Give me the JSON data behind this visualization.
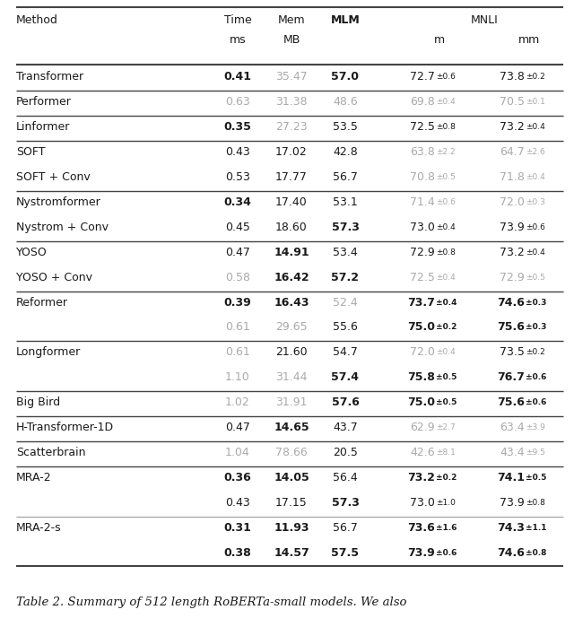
{
  "caption": "Table 2. Summary of 512 length RoBERTa-small models. We also",
  "rows": [
    {
      "method": [
        "Transformer"
      ],
      "subrows": [
        {
          "time": "0.41",
          "tb": true,
          "tg": false,
          "mem": "35.47",
          "mb": false,
          "mg": true,
          "mlm": "57.0",
          "lb": true,
          "lg": false,
          "mm": "72.7",
          "mme": "0.6",
          "mmb": false,
          "mmg": false,
          "mmm": "73.8",
          "mmme": "0.2",
          "mmmb": false,
          "mmmg": false
        }
      ],
      "sep_below": true
    },
    {
      "method": [
        "Performer"
      ],
      "subrows": [
        {
          "time": "0.63",
          "tb": false,
          "tg": true,
          "mem": "31.38",
          "mb": false,
          "mg": true,
          "mlm": "48.6",
          "lb": false,
          "lg": true,
          "mm": "69.8",
          "mme": "0.4",
          "mmb": false,
          "mmg": true,
          "mmm": "70.5",
          "mmme": "0.1",
          "mmmb": false,
          "mmmg": true
        }
      ],
      "sep_below": true
    },
    {
      "method": [
        "Linformer"
      ],
      "subrows": [
        {
          "time": "0.35",
          "tb": true,
          "tg": false,
          "mem": "27.23",
          "mb": false,
          "mg": true,
          "mlm": "53.5",
          "lb": false,
          "lg": false,
          "mm": "72.5",
          "mme": "0.8",
          "mmb": false,
          "mmg": false,
          "mmm": "73.2",
          "mmme": "0.4",
          "mmmb": false,
          "mmmg": false
        }
      ],
      "sep_below": true
    },
    {
      "method": [
        "SOFT",
        "SOFT + Conv"
      ],
      "subrows": [
        {
          "time": "0.43",
          "tb": false,
          "tg": false,
          "mem": "17.02",
          "mb": false,
          "mg": false,
          "mlm": "42.8",
          "lb": false,
          "lg": false,
          "mm": "63.8",
          "mme": "2.2",
          "mmb": false,
          "mmg": true,
          "mmm": "64.7",
          "mmme": "2.6",
          "mmmb": false,
          "mmmg": true
        },
        {
          "time": "0.53",
          "tb": false,
          "tg": false,
          "mem": "17.77",
          "mb": false,
          "mg": false,
          "mlm": "56.7",
          "lb": false,
          "lg": false,
          "mm": "70.8",
          "mme": "0.5",
          "mmb": false,
          "mmg": true,
          "mmm": "71.8",
          "mmme": "0.4",
          "mmmb": false,
          "mmmg": true
        }
      ],
      "sep_below": true
    },
    {
      "method": [
        "Nystromformer",
        "Nystrom + Conv"
      ],
      "subrows": [
        {
          "time": "0.34",
          "tb": true,
          "tg": false,
          "mem": "17.40",
          "mb": false,
          "mg": false,
          "mlm": "53.1",
          "lb": false,
          "lg": false,
          "mm": "71.4",
          "mme": "0.6",
          "mmb": false,
          "mmg": true,
          "mmm": "72.0",
          "mmme": "0.3",
          "mmmb": false,
          "mmmg": true
        },
        {
          "time": "0.45",
          "tb": false,
          "tg": false,
          "mem": "18.60",
          "mb": false,
          "mg": false,
          "mlm": "57.3",
          "lb": true,
          "lg": false,
          "mm": "73.0",
          "mme": "0.4",
          "mmb": false,
          "mmg": false,
          "mmm": "73.9",
          "mmme": "0.6",
          "mmmb": false,
          "mmmg": false
        }
      ],
      "sep_below": true
    },
    {
      "method": [
        "YOSO",
        "YOSO + Conv"
      ],
      "subrows": [
        {
          "time": "0.47",
          "tb": false,
          "tg": false,
          "mem": "14.91",
          "mb": true,
          "mg": false,
          "mlm": "53.4",
          "lb": false,
          "lg": false,
          "mm": "72.9",
          "mme": "0.8",
          "mmb": false,
          "mmg": false,
          "mmm": "73.2",
          "mmme": "0.4",
          "mmmb": false,
          "mmmg": false
        },
        {
          "time": "0.58",
          "tb": false,
          "tg": true,
          "mem": "16.42",
          "mb": true,
          "mg": false,
          "mlm": "57.2",
          "lb": true,
          "lg": false,
          "mm": "72.5",
          "mme": "0.4",
          "mmb": false,
          "mmg": true,
          "mmm": "72.9",
          "mmme": "0.5",
          "mmmb": false,
          "mmmg": true
        }
      ],
      "sep_below": true
    },
    {
      "method": [
        "Reformer",
        ""
      ],
      "subrows": [
        {
          "time": "0.39",
          "tb": true,
          "tg": false,
          "mem": "16.43",
          "mb": true,
          "mg": false,
          "mlm": "52.4",
          "lb": false,
          "lg": true,
          "mm": "73.7",
          "mme": "0.4",
          "mmb": true,
          "mmg": false,
          "mmm": "74.6",
          "mmme": "0.3",
          "mmmb": true,
          "mmmg": false
        },
        {
          "time": "0.61",
          "tb": false,
          "tg": true,
          "mem": "29.65",
          "mb": false,
          "mg": true,
          "mlm": "55.6",
          "lb": false,
          "lg": false,
          "mm": "75.0",
          "mme": "0.2",
          "mmb": true,
          "mmg": false,
          "mmm": "75.6",
          "mmme": "0.3",
          "mmmb": true,
          "mmmg": false
        }
      ],
      "sep_below": true
    },
    {
      "method": [
        "Longformer",
        ""
      ],
      "subrows": [
        {
          "time": "0.61",
          "tb": false,
          "tg": true,
          "mem": "21.60",
          "mb": false,
          "mg": false,
          "mlm": "54.7",
          "lb": false,
          "lg": false,
          "mm": "72.0",
          "mme": "0.4",
          "mmb": false,
          "mmg": true,
          "mmm": "73.5",
          "mmme": "0.2",
          "mmmb": false,
          "mmmg": false
        },
        {
          "time": "1.10",
          "tb": false,
          "tg": true,
          "mem": "31.44",
          "mb": false,
          "mg": true,
          "mlm": "57.4",
          "lb": true,
          "lg": false,
          "mm": "75.8",
          "mme": "0.5",
          "mmb": true,
          "mmg": false,
          "mmm": "76.7",
          "mmme": "0.6",
          "mmmb": true,
          "mmmg": false
        }
      ],
      "sep_below": true
    },
    {
      "method": [
        "Big Bird"
      ],
      "subrows": [
        {
          "time": "1.02",
          "tb": false,
          "tg": true,
          "mem": "31.91",
          "mb": false,
          "mg": true,
          "mlm": "57.6",
          "lb": true,
          "lg": false,
          "mm": "75.0",
          "mme": "0.5",
          "mmb": true,
          "mmg": false,
          "mmm": "75.6",
          "mmme": "0.6",
          "mmmb": true,
          "mmmg": false
        }
      ],
      "sep_below": true
    },
    {
      "method": [
        "H-Transformer-1D"
      ],
      "subrows": [
        {
          "time": "0.47",
          "tb": false,
          "tg": false,
          "mem": "14.65",
          "mb": true,
          "mg": false,
          "mlm": "43.7",
          "lb": false,
          "lg": false,
          "mm": "62.9",
          "mme": "2.7",
          "mmb": false,
          "mmg": true,
          "mmm": "63.4",
          "mmme": "3.9",
          "mmmb": false,
          "mmmg": true
        }
      ],
      "sep_below": true
    },
    {
      "method": [
        "Scatterbrain"
      ],
      "subrows": [
        {
          "time": "1.04",
          "tb": false,
          "tg": true,
          "mem": "78.66",
          "mb": false,
          "mg": true,
          "mlm": "20.5",
          "lb": false,
          "lg": false,
          "mm": "42.6",
          "mme": "8.1",
          "mmb": false,
          "mmg": true,
          "mmm": "43.4",
          "mmme": "9.5",
          "mmmb": false,
          "mmmg": true
        }
      ],
      "sep_below": true
    },
    {
      "method": [
        "MRA-2",
        ""
      ],
      "subrows": [
        {
          "time": "0.36",
          "tb": true,
          "tg": false,
          "mem": "14.05",
          "mb": true,
          "mg": false,
          "mlm": "56.4",
          "lb": false,
          "lg": false,
          "mm": "73.2",
          "mme": "0.2",
          "mmb": true,
          "mmg": false,
          "mmm": "74.1",
          "mmme": "0.5",
          "mmmb": true,
          "mmmg": false
        },
        {
          "time": "0.43",
          "tb": false,
          "tg": false,
          "mem": "17.15",
          "mb": false,
          "mg": false,
          "mlm": "57.3",
          "lb": true,
          "lg": false,
          "mm": "73.0",
          "mme": "1.0",
          "mmb": false,
          "mmg": false,
          "mmm": "73.9",
          "mmme": "0.8",
          "mmmb": false,
          "mmmg": false
        }
      ],
      "sep_below": false
    },
    {
      "method": [
        "MRA-2-s",
        ""
      ],
      "subrows": [
        {
          "time": "0.31",
          "tb": true,
          "tg": false,
          "mem": "11.93",
          "mb": true,
          "mg": false,
          "mlm": "56.7",
          "lb": false,
          "lg": false,
          "mm": "73.6",
          "mme": "1.6",
          "mmb": true,
          "mmg": false,
          "mmm": "74.3",
          "mmme": "1.1",
          "mmmb": true,
          "mmmg": false
        },
        {
          "time": "0.38",
          "tb": true,
          "tg": false,
          "mem": "14.57",
          "mb": true,
          "mg": false,
          "mlm": "57.5",
          "lb": true,
          "lg": false,
          "mm": "73.9",
          "mme": "0.6",
          "mmb": true,
          "mmg": false,
          "mmm": "74.6",
          "mmme": "0.8",
          "mmmb": true,
          "mmmg": false
        }
      ],
      "sep_below": true
    }
  ],
  "gray_color": "#aaaaaa",
  "black_color": "#1a1a1a",
  "line_color": "#444444",
  "caption_text": "Table 2. Summary of 512 length RoBERTa-small models. We also",
  "figsize": [
    6.4,
    6.99
  ],
  "dpi": 100
}
